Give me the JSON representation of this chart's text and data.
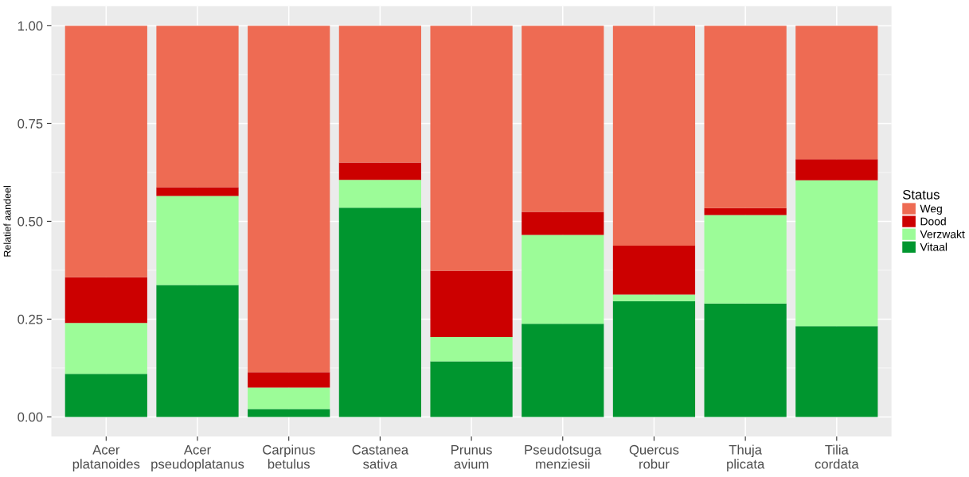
{
  "chart_data": {
    "type": "bar",
    "stacked": true,
    "ylabel": "Relatief aandeel",
    "legend_title": "Status",
    "legend": "right",
    "grid": true,
    "categories": [
      "Acer\nplatanoides",
      "Acer\npseudoplatanus",
      "Carpinus\nbetulus",
      "Castanea\nsativa",
      "Prunus\navium",
      "Pseudotsuga\nmenziesii",
      "Quercus\nrobur",
      "Thuja\nplicata",
      "Tilia\ncordata"
    ],
    "ylim": [
      -0.05,
      1.05
    ],
    "yticks": [
      {
        "value": 0,
        "label": "0.00"
      },
      {
        "value": 0.25,
        "label": "0.25"
      },
      {
        "value": 0.5,
        "label": "0.50"
      },
      {
        "value": 0.75,
        "label": "0.75"
      },
      {
        "value": 1,
        "label": "1.00"
      }
    ],
    "series": [
      {
        "name": "Vitaal",
        "color": "#00962f",
        "values": [
          0.11,
          0.337,
          0.02,
          0.535,
          0.142,
          0.238,
          0.296,
          0.29,
          0.232
        ]
      },
      {
        "name": "Verzwakt",
        "color": "#9cfc98",
        "values": [
          0.13,
          0.228,
          0.055,
          0.071,
          0.062,
          0.227,
          0.017,
          0.226,
          0.373
        ]
      },
      {
        "name": "Dood",
        "color": "#cc0000",
        "values": [
          0.117,
          0.022,
          0.039,
          0.044,
          0.17,
          0.059,
          0.125,
          0.018,
          0.054
        ]
      },
      {
        "name": "Weg",
        "color": "#ee6b53",
        "values": [
          0.643,
          0.413,
          0.886,
          0.35,
          0.626,
          0.476,
          0.562,
          0.466,
          0.341
        ]
      }
    ]
  }
}
